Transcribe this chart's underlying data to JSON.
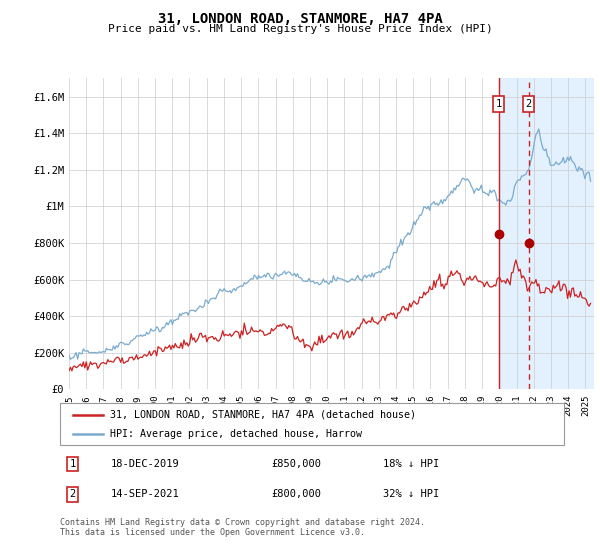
{
  "title": "31, LONDON ROAD, STANMORE, HA7 4PA",
  "subtitle": "Price paid vs. HM Land Registry's House Price Index (HPI)",
  "legend_line1": "31, LONDON ROAD, STANMORE, HA7 4PA (detached house)",
  "legend_line2": "HPI: Average price, detached house, Harrow",
  "annotation1_date": "18-DEC-2019",
  "annotation1_price": "£850,000",
  "annotation1_hpi": "18% ↓ HPI",
  "annotation1_year": 2019.96,
  "annotation1_value": 850000,
  "annotation2_date": "14-SEP-2021",
  "annotation2_price": "£800,000",
  "annotation2_hpi": "32% ↓ HPI",
  "annotation2_year": 2021.71,
  "annotation2_value": 800000,
  "hpi_color": "#7aabcf",
  "price_color": "#cc2222",
  "marker_color": "#aa0000",
  "shade_color": "#ddeeff",
  "background_color": "#ffffff",
  "grid_color": "#cccccc",
  "footer": "Contains HM Land Registry data © Crown copyright and database right 2024.\nThis data is licensed under the Open Government Licence v3.0.",
  "ylim": [
    0,
    1700000
  ],
  "yticks": [
    0,
    200000,
    400000,
    600000,
    800000,
    1000000,
    1200000,
    1400000,
    1600000
  ],
  "ytick_labels": [
    "£0",
    "£200K",
    "£400K",
    "£600K",
    "£800K",
    "£1M",
    "£1.2M",
    "£1.4M",
    "£1.6M"
  ],
  "xmin": 1995.0,
  "xmax": 2025.5
}
